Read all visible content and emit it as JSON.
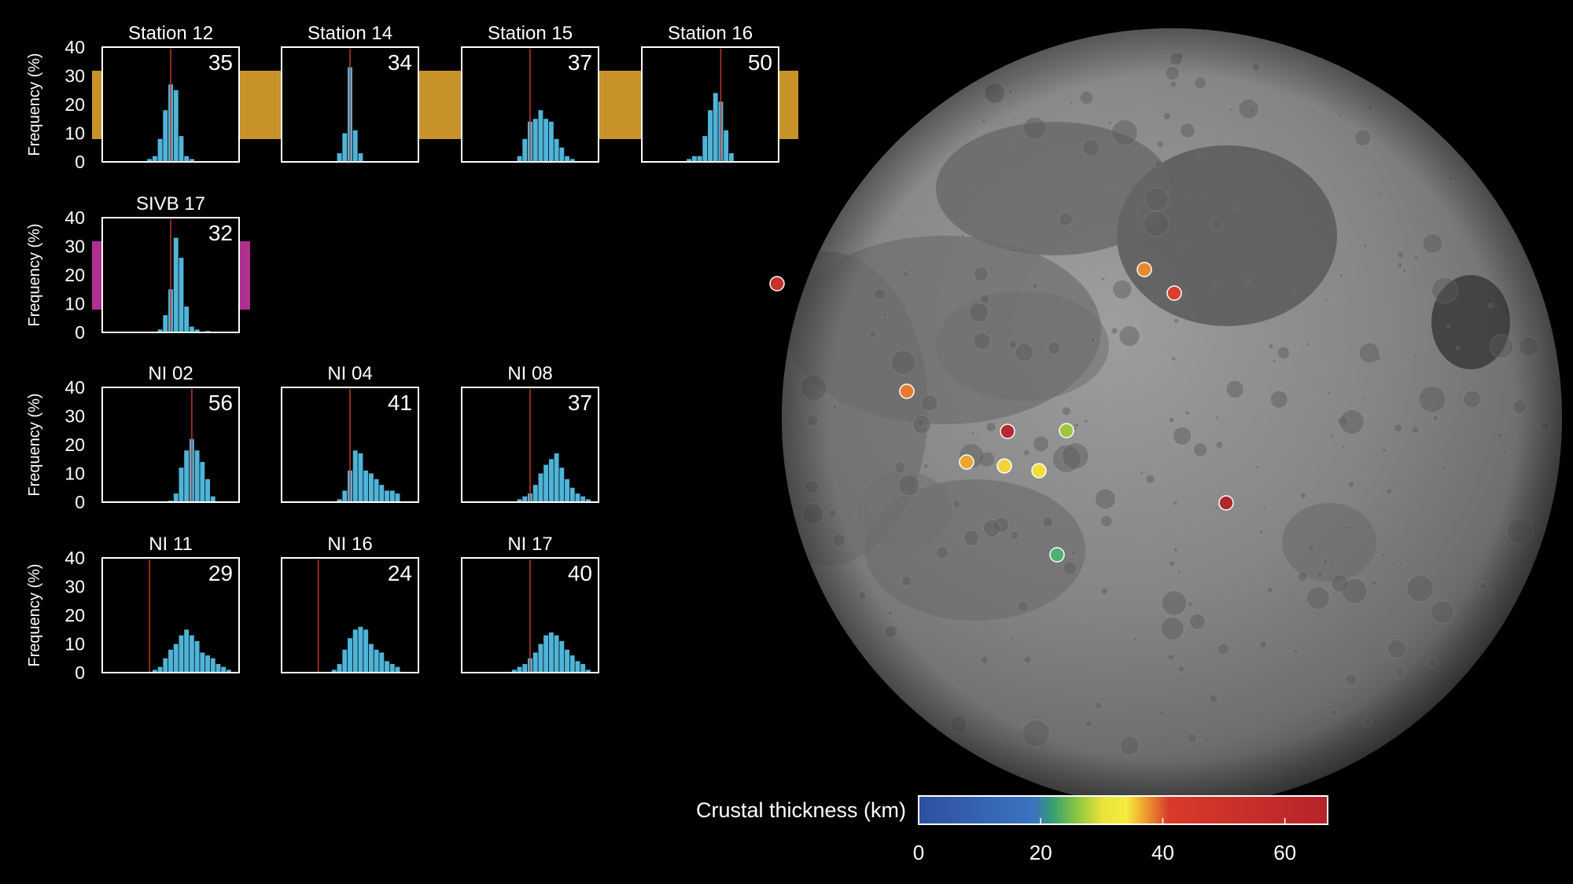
{
  "y_axis": {
    "label": "Frequency (%)",
    "ticks": [
      0,
      10,
      20,
      30,
      40
    ],
    "ylim": [
      0,
      40
    ]
  },
  "colors": {
    "bars": "#4fb4d8",
    "median": "#c0392b",
    "connector_station": "#c8922a",
    "connector_sivb": "#b0308f",
    "frame": "#ffffff",
    "background": "#000000"
  },
  "chart_data": [
    {
      "type": "bar",
      "title": "Station 12",
      "value_label": "35",
      "median_bin": 12,
      "ylim": [
        0,
        40
      ],
      "values": [
        0,
        0,
        0,
        0,
        0,
        0,
        0,
        0,
        1,
        2,
        8,
        18,
        27,
        25,
        9,
        2,
        1,
        0,
        0,
        0,
        0,
        0,
        0,
        0,
        0
      ]
    },
    {
      "type": "bar",
      "title": "Station 14",
      "value_label": "34",
      "median_bin": 12,
      "ylim": [
        0,
        40
      ],
      "values": [
        0,
        0,
        0,
        0,
        0,
        0,
        0,
        0,
        0,
        0,
        3,
        10,
        33,
        11,
        3,
        0,
        0,
        0,
        0,
        0,
        0,
        0,
        0,
        0,
        0
      ]
    },
    {
      "type": "bar",
      "title": "Station 15",
      "value_label": "37",
      "median_bin": 12,
      "ylim": [
        0,
        40
      ],
      "values": [
        0,
        0,
        0,
        0,
        0,
        0,
        0,
        0,
        0,
        0,
        2,
        8,
        14,
        15,
        18,
        15,
        14,
        8,
        5,
        2,
        1,
        0,
        0,
        0,
        0
      ]
    },
    {
      "type": "bar",
      "title": "Station 16",
      "value_label": "50",
      "median_bin": 14,
      "ylim": [
        0,
        40
      ],
      "values": [
        0,
        0,
        0,
        0,
        0,
        0,
        0,
        0,
        1,
        2,
        2,
        9,
        18,
        24,
        21,
        11,
        3,
        0,
        0,
        0,
        0,
        0,
        0,
        0,
        0
      ]
    },
    {
      "type": "bar",
      "title": "SIVB 17",
      "value_label": "32",
      "median_bin": 12,
      "ylim": [
        0,
        40
      ],
      "values": [
        0,
        0,
        0,
        0,
        0,
        0,
        0,
        0,
        0,
        0,
        1,
        6,
        15,
        33,
        26,
        9,
        2,
        1,
        0,
        0.5,
        0,
        0,
        0,
        0,
        0
      ]
    },
    {
      "type": "bar",
      "title": "NI 02",
      "value_label": "56",
      "median_bin": 16,
      "ylim": [
        0,
        40
      ],
      "values": [
        0,
        0,
        0,
        0,
        0,
        0,
        0,
        0,
        0,
        0,
        0,
        0,
        0.5,
        3,
        12,
        18,
        22,
        18,
        14,
        8,
        2,
        0,
        0,
        0,
        0
      ]
    },
    {
      "type": "bar",
      "title": "NI 04",
      "value_label": "41",
      "median_bin": 12,
      "ylim": [
        0,
        40
      ],
      "values": [
        0,
        0,
        0,
        0,
        0,
        0,
        0,
        0,
        0,
        0,
        1,
        4,
        11,
        18,
        17,
        11,
        10,
        8,
        6,
        4,
        4,
        3,
        0,
        0,
        0
      ]
    },
    {
      "type": "bar",
      "title": "NI 08",
      "value_label": "37",
      "median_bin": 12,
      "ylim": [
        0,
        40
      ],
      "values": [
        0,
        0,
        0,
        0,
        0,
        0,
        0,
        0,
        0,
        0,
        1,
        2,
        3,
        6,
        10,
        13,
        15,
        17,
        12,
        8,
        5,
        3,
        2,
        1,
        0
      ]
    },
    {
      "type": "bar",
      "title": "NI 11",
      "value_label": "29",
      "median_bin": 8,
      "ylim": [
        0,
        40
      ],
      "values": [
        0,
        0,
        0,
        0,
        0,
        0,
        0,
        0,
        0,
        1,
        2,
        5,
        8,
        10,
        13,
        15,
        13,
        11,
        7,
        6,
        5,
        3,
        2,
        1,
        0
      ]
    },
    {
      "type": "bar",
      "title": "NI 16",
      "value_label": "24",
      "median_bin": 6,
      "ylim": [
        0,
        40
      ],
      "values": [
        0,
        0,
        0,
        0,
        0,
        0,
        0,
        0,
        0,
        1,
        3,
        8,
        12,
        15,
        16,
        15,
        10,
        8,
        7,
        4,
        3,
        2,
        0,
        0,
        0
      ]
    },
    {
      "type": "bar",
      "title": "NI 17",
      "value_label": "40",
      "median_bin": 12,
      "ylim": [
        0,
        40
      ],
      "values": [
        0,
        0,
        0,
        0,
        0,
        0,
        0,
        0,
        0,
        1,
        2,
        3,
        5,
        7,
        10,
        13,
        14,
        13,
        11,
        8,
        6,
        4,
        3,
        1,
        0
      ]
    }
  ],
  "colorbar": {
    "label": "Crustal thickness (km)",
    "ticks": [
      0,
      20,
      40,
      60
    ],
    "range": [
      0,
      67
    ],
    "stops": [
      {
        "v": 0,
        "color": "#2e4fa0"
      },
      {
        "v": 19,
        "color": "#3b74c0"
      },
      {
        "v": 22,
        "color": "#35a070"
      },
      {
        "v": 26,
        "color": "#8cc63f"
      },
      {
        "v": 30,
        "color": "#e8e23a"
      },
      {
        "v": 34,
        "color": "#f6ec3b"
      },
      {
        "v": 37,
        "color": "#f0a030"
      },
      {
        "v": 41,
        "color": "#d83a2a"
      },
      {
        "v": 67,
        "color": "#b8232a"
      }
    ]
  },
  "map_stations": [
    {
      "thickness": 56,
      "color": "#c8302c"
    },
    {
      "thickness": 37,
      "color": "#e8892e"
    },
    {
      "thickness": 41,
      "color": "#d9402e"
    },
    {
      "thickness": 40,
      "color": "#e67a2e"
    },
    {
      "thickness": 50,
      "color": "#b52a2e"
    },
    {
      "thickness": 29,
      "color": "#9cc63c"
    },
    {
      "thickness": 35,
      "color": "#eca52e"
    },
    {
      "thickness": 34,
      "color": "#f2d43a"
    },
    {
      "thickness": 32,
      "color": "#f4de3a"
    },
    {
      "thickness": 50,
      "color": "#b0282e"
    },
    {
      "thickness": 24,
      "color": "#4fb073"
    }
  ]
}
